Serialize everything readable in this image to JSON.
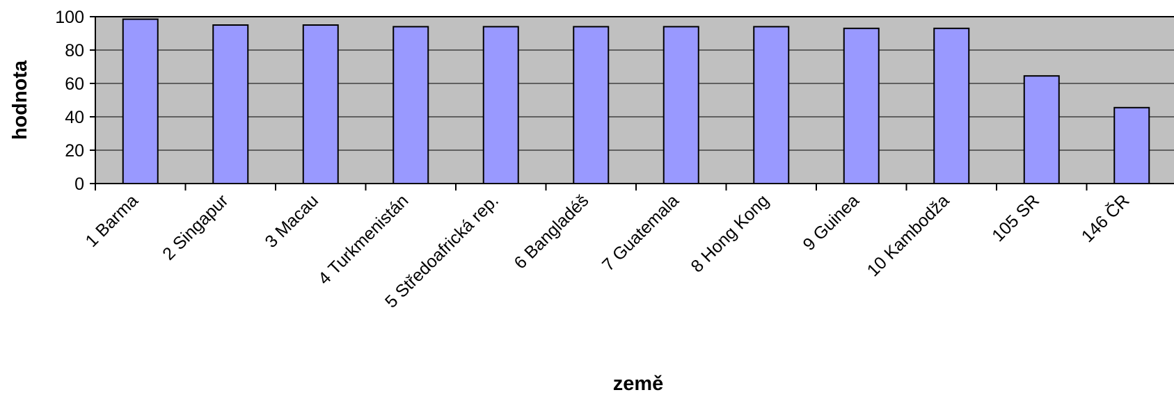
{
  "chart_data": {
    "type": "bar",
    "title": "",
    "xlabel": "země",
    "ylabel": "hodnota",
    "ylim": [
      0,
      100
    ],
    "yticks": [
      0,
      20,
      40,
      60,
      80,
      100
    ],
    "grid": true,
    "legend": "none",
    "categories": [
      "1 Barma",
      "2 Singapur",
      "3 Macau",
      "4 Turkmenistán",
      "5 Středoafrická rep.",
      "6 Bangladéš",
      "7 Guatemala",
      "8 Hong Kong",
      "9 Guinea",
      "10 Kambodža",
      "105 SR",
      "146 ČR"
    ],
    "values": [
      98.5,
      95,
      95,
      94,
      94,
      94,
      94,
      94,
      93,
      93,
      64.5,
      45.5
    ]
  },
  "colors": {
    "plot_background": "#c0c0c0",
    "bar_fill": "#9999ff",
    "bar_stroke": "#000000",
    "gridline": "#000000"
  }
}
